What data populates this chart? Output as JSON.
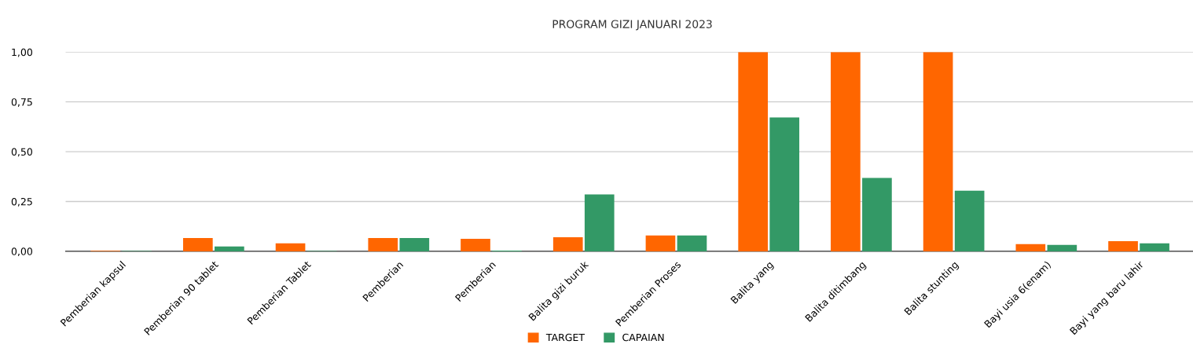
{
  "chart_data": {
    "type": "bar",
    "title": "PROGRAM GIZI JANUARI 2023",
    "categories": [
      "Pemberian kapsul",
      "Pemberian 90 tablet",
      "Pemberian Tablet",
      "Pemberian",
      "Pemberian",
      "Balita gizi buruk",
      "Pemberian Proses",
      "Balita yang",
      "Balita ditimbang",
      "Balita stunting",
      "Bayi usia 6(enam)",
      "Bayi yang baru lahir"
    ],
    "series": [
      {
        "name": "TARGET",
        "color": "#ff6600",
        "values": [
          0.003,
          0.067,
          0.04,
          0.067,
          0.063,
          0.071,
          0.079,
          1.0,
          1.0,
          1.0,
          0.036,
          0.051
        ]
      },
      {
        "name": "CAPAIAN",
        "color": "#339966",
        "values": [
          0.002,
          0.024,
          0.002,
          0.067,
          0.004,
          0.285,
          0.079,
          0.672,
          0.368,
          0.304,
          0.032,
          0.04
        ]
      }
    ],
    "ylim": [
      0,
      1.0
    ],
    "yticks": [
      {
        "value": 0,
        "label": "0,00"
      },
      {
        "value": 0.25,
        "label": "0,25"
      },
      {
        "value": 0.5,
        "label": "0,50"
      },
      {
        "value": 0.75,
        "label": "0,75"
      },
      {
        "value": 1.0,
        "label": "1,00"
      }
    ],
    "grid": "y",
    "legend": "bottom"
  }
}
